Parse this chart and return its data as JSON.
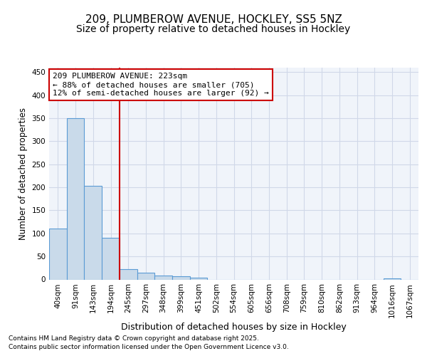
{
  "title_line1": "209, PLUMBEROW AVENUE, HOCKLEY, SS5 5NZ",
  "title_line2": "Size of property relative to detached houses in Hockley",
  "xlabel": "Distribution of detached houses by size in Hockley",
  "ylabel": "Number of detached properties",
  "categories": [
    "40sqm",
    "91sqm",
    "143sqm",
    "194sqm",
    "245sqm",
    "297sqm",
    "348sqm",
    "399sqm",
    "451sqm",
    "502sqm",
    "554sqm",
    "605sqm",
    "656sqm",
    "708sqm",
    "759sqm",
    "810sqm",
    "862sqm",
    "913sqm",
    "964sqm",
    "1016sqm",
    "1067sqm"
  ],
  "values": [
    110,
    350,
    204,
    90,
    22,
    14,
    9,
    7,
    4,
    0,
    0,
    0,
    0,
    0,
    0,
    0,
    0,
    0,
    0,
    3,
    0
  ],
  "bar_color": "#c9daea",
  "bar_edge_color": "#5b9bd5",
  "bar_edge_width": 0.8,
  "vline_color": "#cc0000",
  "vline_position": 3.5,
  "annotation_box_color": "#cc0000",
  "annotation_text_line1": "209 PLUMBEROW AVENUE: 223sqm",
  "annotation_text_line2": "← 88% of detached houses are smaller (705)",
  "annotation_text_line3": "12% of semi-detached houses are larger (92) →",
  "annotation_fontsize": 8.0,
  "ylim": [
    0,
    460
  ],
  "yticks": [
    0,
    50,
    100,
    150,
    200,
    250,
    300,
    350,
    400,
    450
  ],
  "background_color": "#ffffff",
  "plot_background": "#f0f4fa",
  "grid_color": "#d0d8e8",
  "footer_line1": "Contains HM Land Registry data © Crown copyright and database right 2025.",
  "footer_line2": "Contains public sector information licensed under the Open Government Licence v3.0.",
  "title_fontsize": 11,
  "subtitle_fontsize": 10,
  "axis_label_fontsize": 9,
  "tick_fontsize": 7.5,
  "footer_fontsize": 6.5,
  "ylabel_fontsize": 8.5
}
